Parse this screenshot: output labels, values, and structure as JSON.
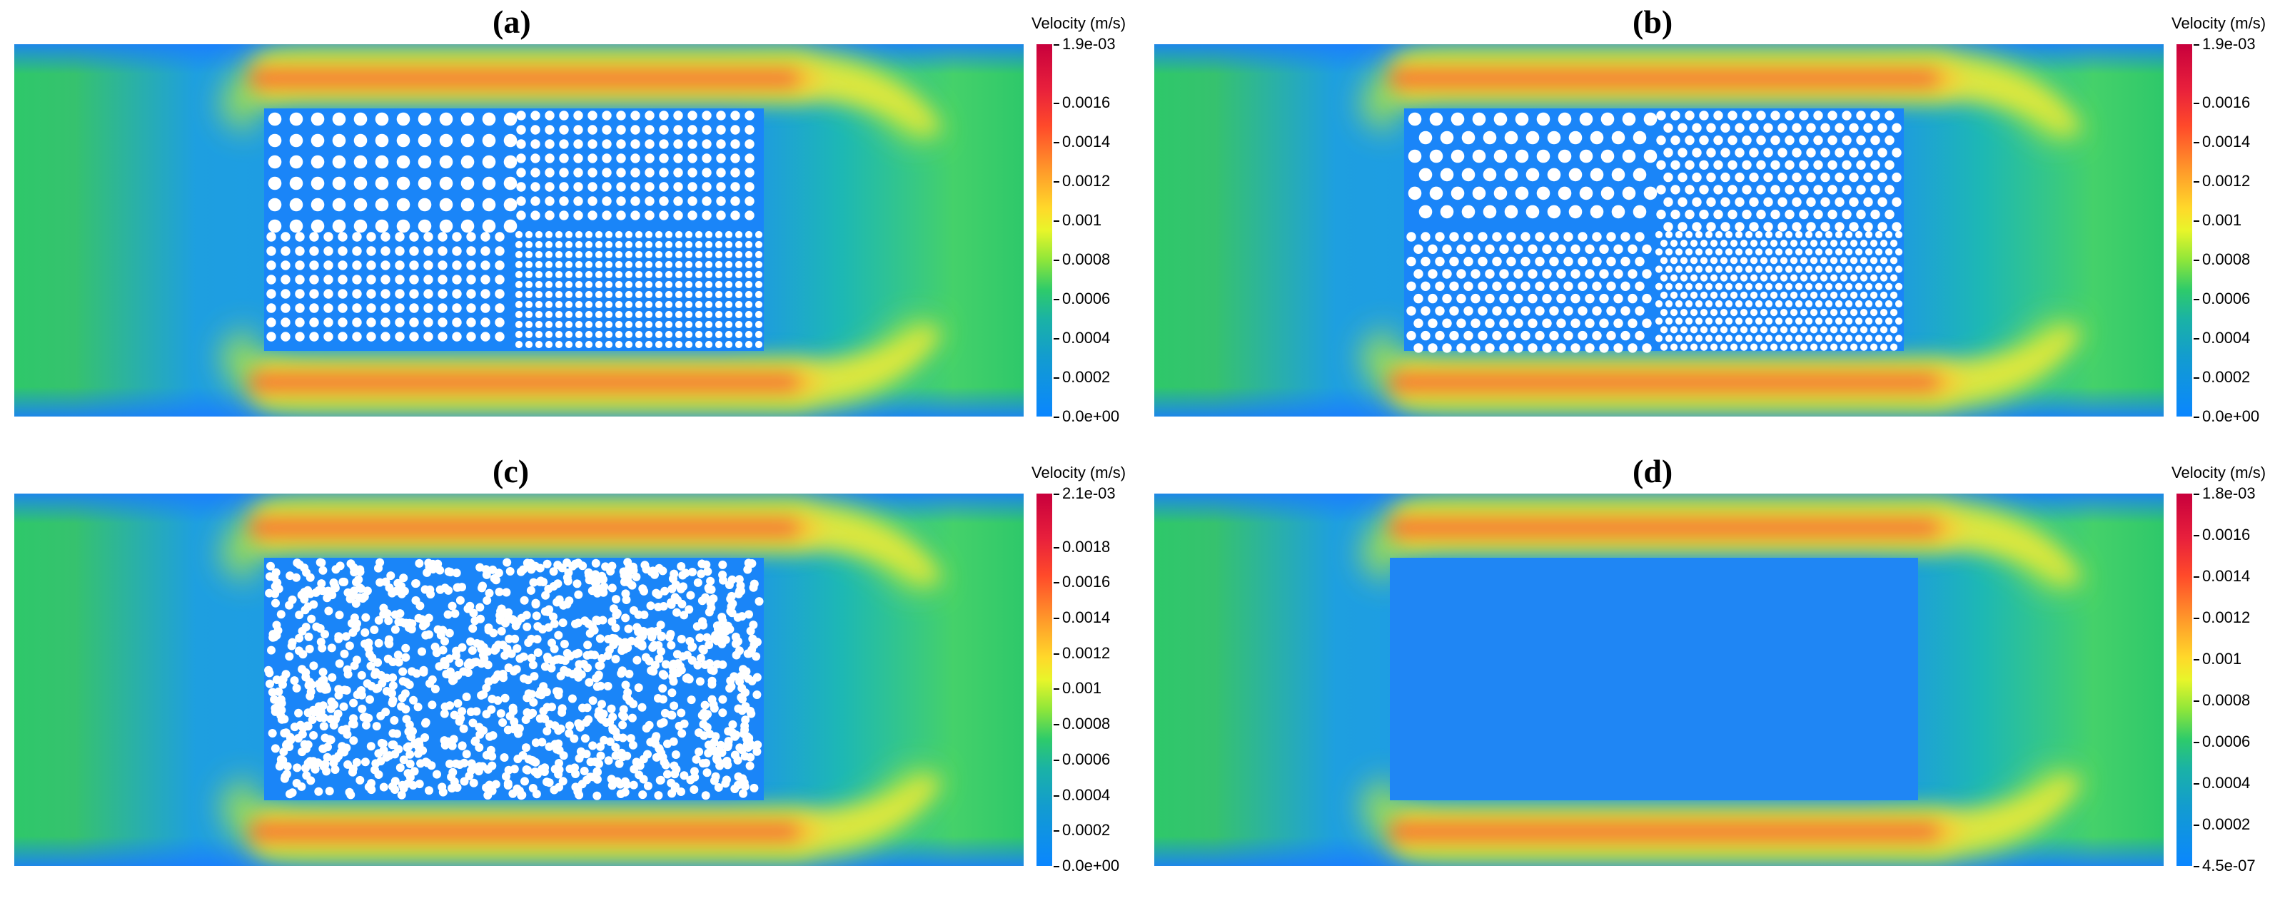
{
  "panels": [
    {
      "id": "a",
      "label": "(a)",
      "colorbar": {
        "title": "Velocity (m/s)",
        "ticks": [
          "1.9e-03",
          "0.0016",
          "0.0014",
          "0.0012",
          "0.001",
          "0.0008",
          "0.0006",
          "0.0004",
          "0.0002",
          "0.0e+00"
        ],
        "tick_values": [
          0.0019,
          0.0016,
          0.0014,
          0.0012,
          0.001,
          0.0008,
          0.0006,
          0.0004,
          0.0002,
          0.0
        ],
        "range": [
          0.0,
          0.0019
        ]
      },
      "porous_pattern": "square grid, four sub-regions of differing spacing"
    },
    {
      "id": "b",
      "label": "(b)",
      "colorbar": {
        "title": "Velocity (m/s)",
        "ticks": [
          "1.9e-03",
          "0.0016",
          "0.0014",
          "0.0012",
          "0.001",
          "0.0008",
          "0.0006",
          "0.0004",
          "0.0002",
          "0.0e+00"
        ],
        "tick_values": [
          0.0019,
          0.0016,
          0.0014,
          0.0012,
          0.001,
          0.0008,
          0.0006,
          0.0004,
          0.0002,
          0.0
        ],
        "range": [
          0.0,
          0.0019
        ]
      },
      "porous_pattern": "staggered grid, four sub-regions of differing spacing"
    },
    {
      "id": "c",
      "label": "(c)",
      "colorbar": {
        "title": "Velocity (m/s)",
        "ticks": [
          "2.1e-03",
          "0.0018",
          "0.0016",
          "0.0014",
          "0.0012",
          "0.001",
          "0.0008",
          "0.0006",
          "0.0004",
          "0.0002",
          "0.0e+00"
        ],
        "tick_values": [
          0.0021,
          0.0018,
          0.0016,
          0.0014,
          0.0012,
          0.001,
          0.0008,
          0.0006,
          0.0004,
          0.0002,
          0.0
        ],
        "range": [
          0.0,
          0.0021
        ]
      },
      "porous_pattern": "random distribution"
    },
    {
      "id": "d",
      "label": "(d)",
      "colorbar": {
        "title": "Velocity (m/s)",
        "ticks": [
          "1.8e-03",
          "0.0016",
          "0.0014",
          "0.0012",
          "0.001",
          "0.0008",
          "0.0006",
          "0.0004",
          "0.0002",
          "4.5e-07"
        ],
        "tick_values": [
          0.0018,
          0.0016,
          0.0014,
          0.0012,
          0.001,
          0.0008,
          0.0006,
          0.0004,
          0.0002,
          4.5e-07
        ],
        "range": [
          4.5e-07,
          0.0018
        ]
      },
      "porous_pattern": "homogenized medium (no obstacles)"
    }
  ],
  "colormap_stops": [
    "#0a86ff",
    "#139ccf",
    "#1ab2a6",
    "#2ecb6a",
    "#8ee63a",
    "#e8f52a",
    "#ffd82a",
    "#ff9a2a",
    "#ff4a2a",
    "#e8203c",
    "#c8003c"
  ]
}
